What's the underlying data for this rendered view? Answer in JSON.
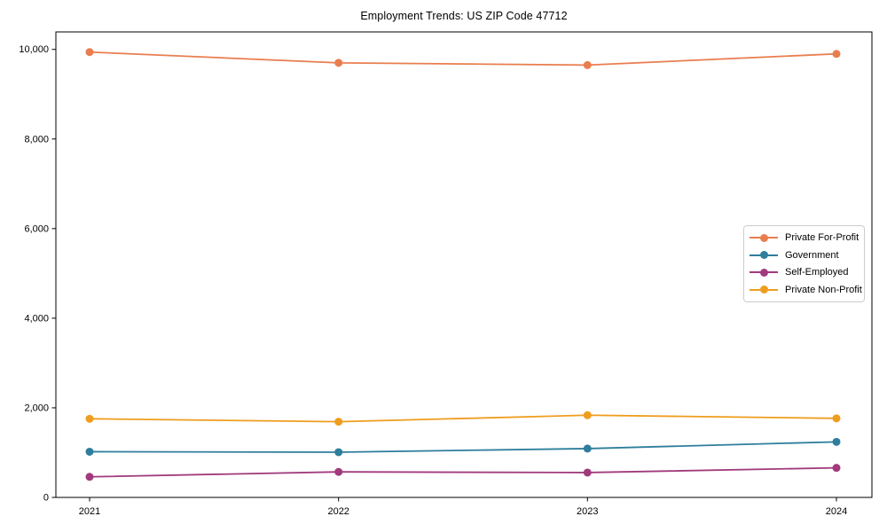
{
  "figure": {
    "background": "#ffffff",
    "axis_color": "#000000",
    "text_color": "#000000"
  },
  "chart_data": {
    "type": "line",
    "title": "Employment Trends: US ZIP Code 47712",
    "xlabel": "",
    "ylabel": "",
    "x_labels": [
      "2021",
      "2022",
      "2023",
      "2024"
    ],
    "series": [
      {
        "name": "Private For-Profit",
        "color": "#e97d4e",
        "values": [
          9940,
          9700,
          9650,
          9900
        ]
      },
      {
        "name": "Government",
        "color": "#2e7e9c",
        "values": [
          1020,
          1010,
          1090,
          1240
        ]
      },
      {
        "name": "Self-Employed",
        "color": "#a13a7c",
        "values": [
          460,
          570,
          555,
          660
        ]
      },
      {
        "name": "Private Non-Profit",
        "color": "#ef9d1e",
        "values": [
          1755,
          1690,
          1835,
          1765
        ]
      }
    ],
    "ylim": [
      0,
      10390
    ],
    "yticks": [
      0,
      2000,
      4000,
      6000,
      8000,
      10000
    ],
    "ytick_labels": [
      "0",
      "2,000",
      "4,000",
      "6,000",
      "8,000",
      "10,000"
    ],
    "grid": false,
    "marker": "circle",
    "legend": {
      "position": "center-right",
      "border_color": "#cccccc",
      "background": "#ffffff"
    }
  }
}
